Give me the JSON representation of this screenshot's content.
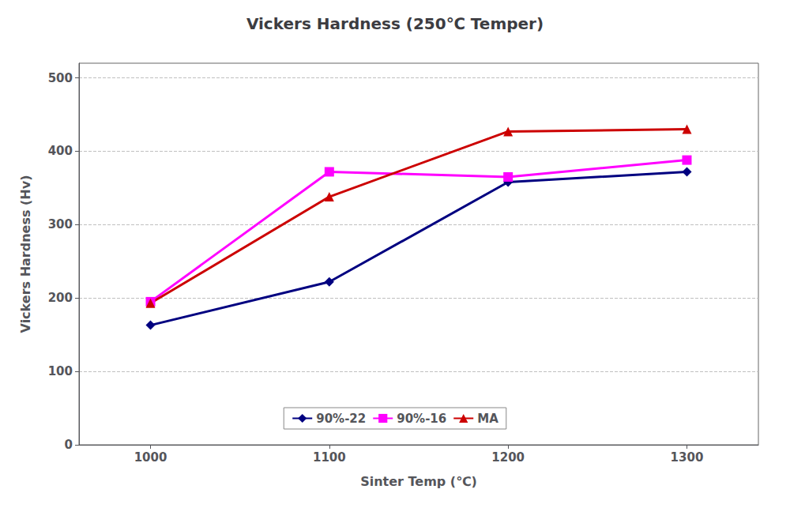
{
  "chart_data": {
    "type": "line",
    "title": "Vickers Hardness (250℃ Temper)",
    "xlabel": "Sinter Temp (℃)",
    "ylabel": "Vickers Hardness (Hv)",
    "x": [
      1000,
      1100,
      1200,
      1300
    ],
    "series": [
      {
        "name": "90%-22",
        "color": "#000080",
        "marker": "diamond",
        "values": [
          163,
          222,
          358,
          372
        ]
      },
      {
        "name": "90%-16",
        "color": "#FF00FF",
        "marker": "square",
        "values": [
          195,
          372,
          365,
          388
        ]
      },
      {
        "name": "MA",
        "color": "#CC0000",
        "marker": "triangle",
        "values": [
          193,
          338,
          427,
          430
        ]
      }
    ],
    "xlim": [
      960,
      1340
    ],
    "xticks": [
      1000,
      1100,
      1200,
      1300
    ],
    "ylim": [
      0,
      520
    ],
    "yticks": [
      0,
      100,
      200,
      300,
      400,
      500
    ],
    "grid": true,
    "legend": "lower center"
  }
}
